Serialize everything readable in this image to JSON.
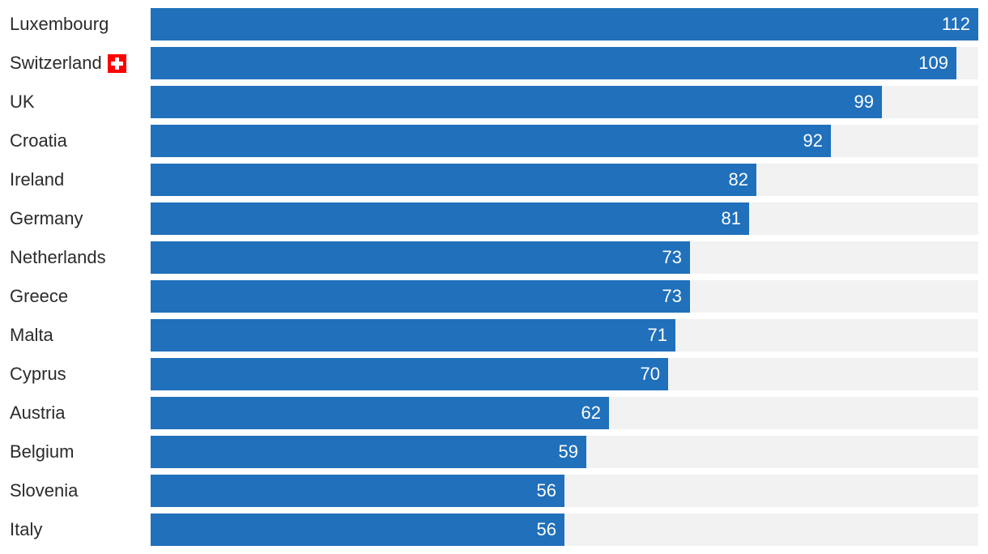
{
  "chart_data": {
    "type": "bar",
    "orientation": "horizontal",
    "categories": [
      "Luxembourg",
      "Switzerland",
      "UK",
      "Croatia",
      "Ireland",
      "Germany",
      "Netherlands",
      "Greece",
      "Malta",
      "Cyprus",
      "Austria",
      "Belgium",
      "Slovenia",
      "Italy"
    ],
    "values": [
      112,
      109,
      99,
      92,
      82,
      81,
      73,
      73,
      71,
      70,
      62,
      59,
      56,
      56
    ],
    "xlim": [
      0,
      112
    ],
    "title": "",
    "xlabel": "",
    "ylabel": "",
    "grid": false,
    "legend": null,
    "flags": {
      "Switzerland": "swiss-flag-icon"
    }
  },
  "colors": {
    "bar": "#2070bb",
    "track": "#f2f2f2",
    "label_text": "#2b2b2b",
    "value_text": "#ffffff",
    "flag_red": "#ff0000"
  }
}
